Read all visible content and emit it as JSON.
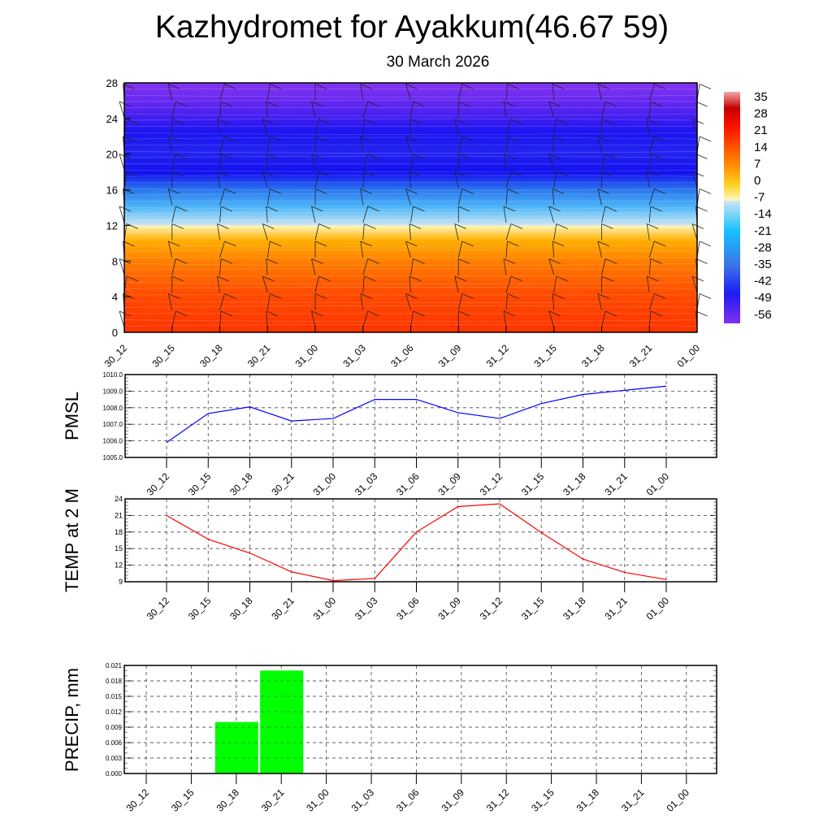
{
  "title": "Kazhydromet for Ayakkum(46.67 59)",
  "subtitle": "30 March 2026",
  "colors": {
    "pmsl_line": "#0000ff",
    "temp_line": "#ff0000",
    "precip_bar": "#00ff00"
  },
  "chart_data": [
    {
      "type": "heatmap",
      "name": "vertical temperature cross-section with wind barbs",
      "x_ticks": [
        "30_12",
        "30_15",
        "30_18",
        "30_21",
        "31_00",
        "31_03",
        "31_06",
        "31_09",
        "31_12",
        "31_15",
        "31_18",
        "31_21",
        "01_00"
      ],
      "y_ticks": [
        "0",
        "4",
        "8",
        "12",
        "16",
        "20",
        "24",
        "28"
      ],
      "ylim": [
        0,
        28
      ],
      "colorbar_labels": [
        "35",
        "28",
        "21",
        "14",
        "7",
        "0",
        "-7",
        "-14",
        "-21",
        "-28",
        "-35",
        "-42",
        "-49",
        "-56"
      ],
      "colorbar_range": [
        -63,
        42
      ]
    },
    {
      "type": "line",
      "ylabel": "PMSL",
      "x": [
        "30_12",
        "30_15",
        "30_18",
        "30_21",
        "31_00",
        "31_03",
        "31_06",
        "31_09",
        "31_12",
        "31_15",
        "31_18",
        "31_21",
        "01_00"
      ],
      "values": [
        1005.9,
        1007.65,
        1008.05,
        1007.2,
        1007.35,
        1008.5,
        1008.5,
        1007.7,
        1007.35,
        1008.25,
        1008.8,
        1009.05,
        1009.3
      ],
      "ylim": [
        1005.0,
        1010.0
      ],
      "y_ticks": [
        "1005.0",
        "1006.0",
        "1007.0",
        "1008.0",
        "1009.0",
        "1010.0"
      ]
    },
    {
      "type": "line",
      "ylabel": "TEMP at 2 M",
      "x": [
        "30_12",
        "30_15",
        "30_18",
        "30_21",
        "31_00",
        "31_03",
        "31_06",
        "31_09",
        "31_12",
        "31_15",
        "31_18",
        "31_21",
        "01_00"
      ],
      "values": [
        21.0,
        16.7,
        14.2,
        10.8,
        9.2,
        9.6,
        18.0,
        22.6,
        23.1,
        17.9,
        13.1,
        10.7,
        9.4
      ],
      "ylim": [
        9,
        24
      ],
      "y_ticks": [
        "9",
        "12",
        "15",
        "18",
        "21",
        "24"
      ]
    },
    {
      "type": "bar",
      "ylabel": "PRECIP, mm",
      "categories": [
        "30_12",
        "30_15",
        "30_18",
        "30_21",
        "31_00",
        "31_03",
        "31_06",
        "31_09",
        "31_12",
        "31_15",
        "31_18",
        "31_21",
        "01_00"
      ],
      "values": [
        0,
        0,
        0.01,
        0.02,
        0,
        0,
        0,
        0,
        0,
        0,
        0,
        0,
        0
      ],
      "ylim": [
        0,
        0.021
      ],
      "y_ticks": [
        "0.000",
        "0.003",
        "0.006",
        "0.009",
        "0.012",
        "0.015",
        "0.018",
        "0.021"
      ]
    }
  ]
}
